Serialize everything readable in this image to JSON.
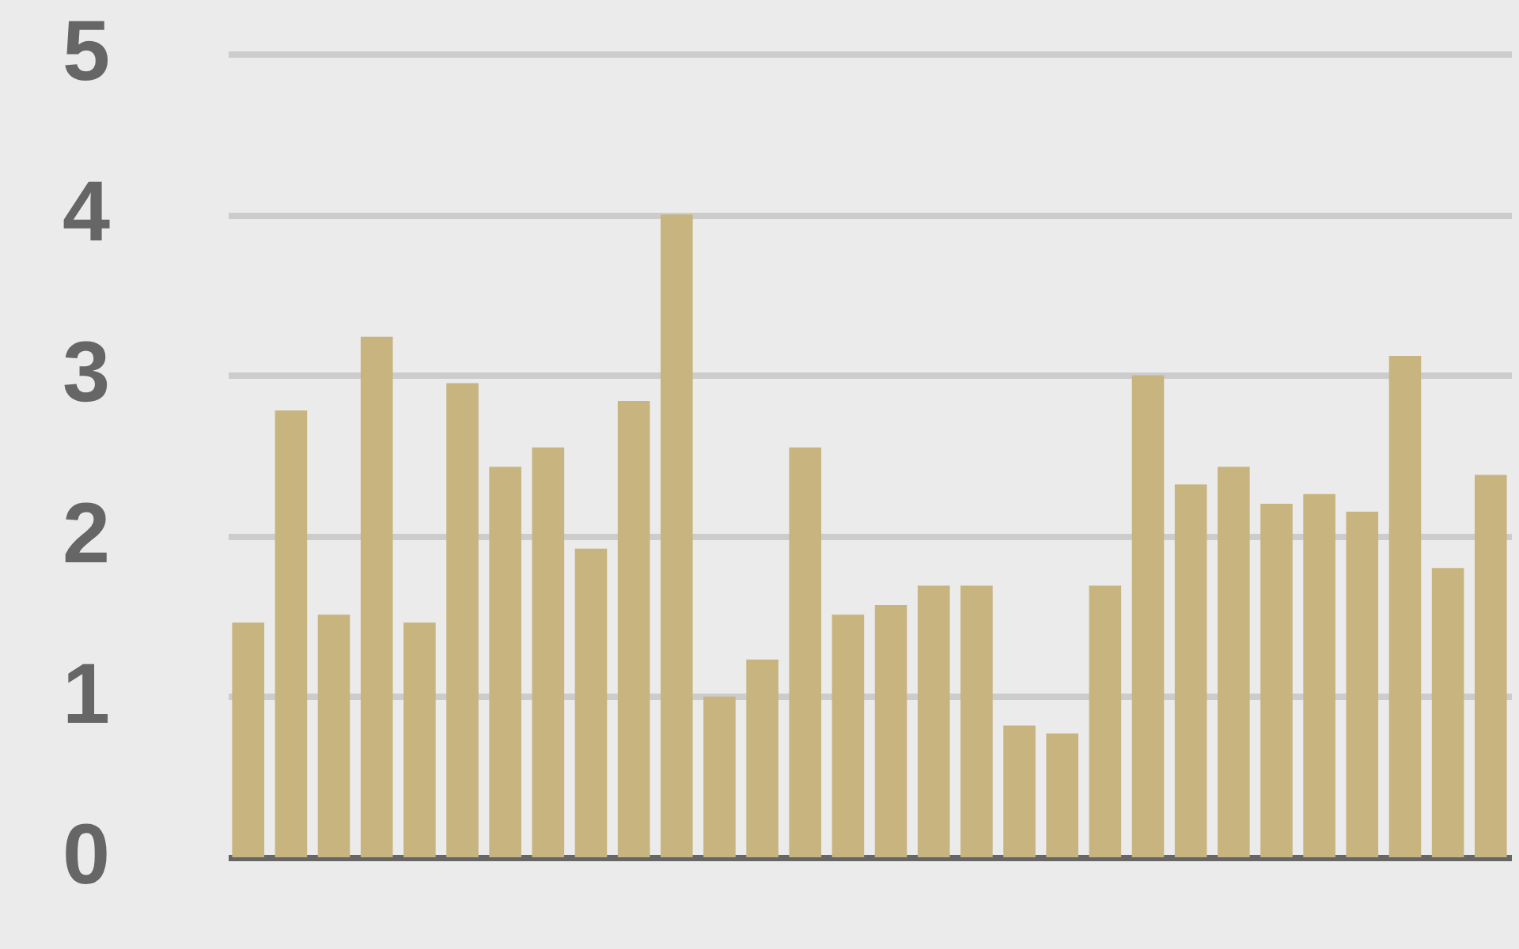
{
  "chart_data": {
    "type": "bar",
    "categories": [
      null,
      null,
      null,
      null,
      null,
      null,
      null,
      null,
      null,
      null,
      null,
      null,
      null,
      null,
      null,
      null,
      null,
      null,
      null,
      null,
      null,
      null,
      null,
      null,
      null,
      null,
      null,
      null,
      null,
      null
    ],
    "values": [
      1.46,
      2.78,
      1.51,
      3.24,
      1.46,
      2.95,
      2.43,
      2.55,
      1.92,
      2.84,
      4.0,
      1.0,
      1.23,
      2.55,
      1.51,
      1.57,
      1.69,
      1.69,
      0.82,
      0.77,
      1.69,
      3.0,
      2.32,
      2.43,
      2.2,
      2.26,
      2.15,
      3.12,
      1.8,
      2.38
    ],
    "color": "#c8b47e",
    "ylim": [
      0,
      5
    ],
    "yticks": [
      0,
      1,
      2,
      3,
      4,
      5
    ],
    "grid": "y",
    "tick_labels": "y"
  }
}
